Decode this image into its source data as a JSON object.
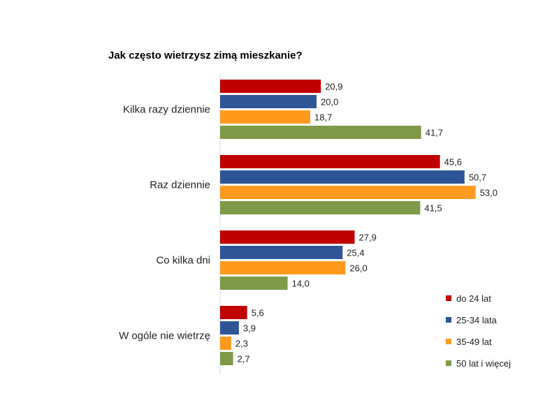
{
  "chart_data": {
    "type": "bar",
    "orientation": "horizontal",
    "title": "Jak często wietrzysz zimą mieszkanie?",
    "categories": [
      "Kilka razy dziennie",
      "Raz dziennie",
      "Co kilka dni",
      "W ogóle nie wietrzę"
    ],
    "series": [
      {
        "name": "do 24 lat",
        "color": "#C00000",
        "values": [
          "20,9",
          "45,6",
          "27,9",
          "5,6"
        ]
      },
      {
        "name": "25-34 lata",
        "color": "#2F5597",
        "values": [
          "20,0",
          "50,7",
          "25,4",
          "3,9"
        ]
      },
      {
        "name": "35-49 lat",
        "color": "#FF9A1F",
        "values": [
          "18,7",
          "53,0",
          "26,0",
          "2,3"
        ]
      },
      {
        "name": "50 lat i więcej",
        "color": "#7F9A48",
        "values": [
          "41,7",
          "41,5",
          "14,0",
          "2,7"
        ]
      }
    ],
    "xlim": [
      0,
      60
    ],
    "grid": false,
    "data_labels": true,
    "legend_position": "bottom-right"
  }
}
